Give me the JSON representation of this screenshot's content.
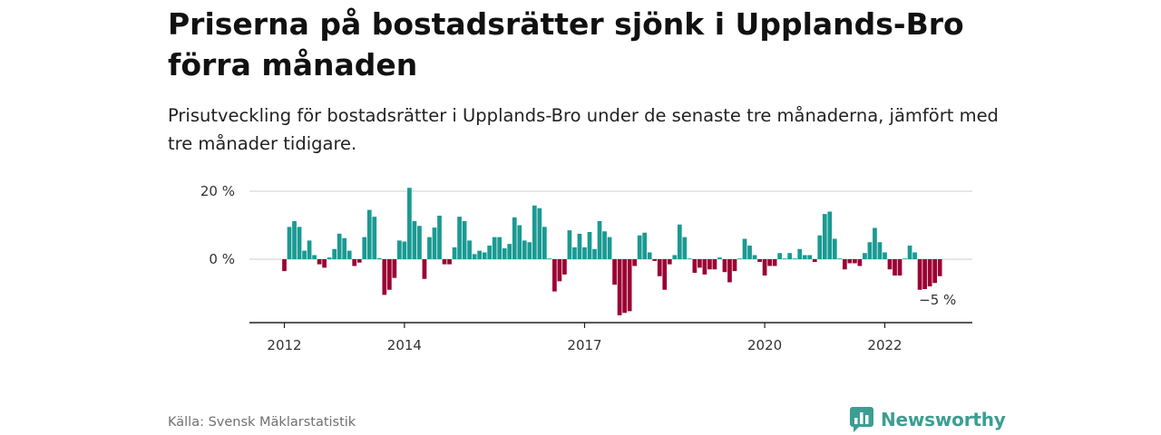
{
  "title": "Priserna på bostadsrätter sjönk i Upplands-Bro förra månaden",
  "subtitle": "Prisutveckling för bostadsrätter i Upplands-Bro under de senaste tre månaderna, jämfört med tre månader tidigare.",
  "source": "Källa: Svensk Mäklarstatistik",
  "brand": "Newsworthy",
  "chart_data": {
    "type": "bar",
    "ylim": [
      -17,
      22
    ],
    "y_ticks": [
      {
        "value": 20,
        "label": "20 %"
      },
      {
        "value": 0,
        "label": "0 %"
      }
    ],
    "x_ticks": [
      {
        "value": 2012,
        "label": "2012"
      },
      {
        "value": 2014,
        "label": "2014"
      },
      {
        "value": 2017,
        "label": "2017"
      },
      {
        "value": 2020,
        "label": "2020"
      },
      {
        "value": 2022,
        "label": "2022"
      }
    ],
    "start": 2012.0,
    "step": 0.08333,
    "values": [
      -3.5,
      9.5,
      11.2,
      9.5,
      2.5,
      5.5,
      1.2,
      -1.5,
      -2.5,
      0.5,
      3,
      7.5,
      6.2,
      2.5,
      -2,
      -1,
      6.5,
      14.5,
      12.5,
      0.3,
      -10.5,
      -9,
      -5.5,
      5.5,
      5.2,
      21,
      11.2,
      9.8,
      -5.8,
      6.5,
      9.3,
      12.8,
      -1.5,
      -1.5,
      3.5,
      12.5,
      11.2,
      5.5,
      1.5,
      2.5,
      2,
      4,
      6.5,
      6.5,
      3.2,
      4.5,
      12.3,
      10,
      5.5,
      5,
      15.8,
      15,
      9.5,
      0.2,
      -9.5,
      -6.5,
      -4.5,
      8.5,
      3.5,
      7.5,
      3.5,
      8,
      3,
      11.2,
      8.2,
      6.5,
      -7.5,
      -16.5,
      -15.8,
      -15.3,
      -2,
      7,
      7.8,
      2,
      -0.5,
      -5,
      -9,
      -1.5,
      1.2,
      10.2,
      6.5,
      0.2,
      -4,
      -2.5,
      -4.5,
      -3,
      -3,
      0.5,
      -3.8,
      -6.8,
      -3.5,
      0.2,
      6,
      4,
      1.2,
      -0.8,
      -4.8,
      -2,
      -2,
      1.8,
      0.2,
      1.8,
      0.2,
      3,
      1.2,
      1.2,
      -0.8,
      7,
      13.3,
      14,
      6,
      0.2,
      -3,
      -1.2,
      -1.2,
      -2,
      1.8,
      5,
      9.2,
      5,
      2,
      -3,
      -4.8,
      -4.8,
      0.2,
      4,
      2,
      -9,
      -8.8,
      -8,
      -7,
      -5
    ],
    "positive_color": "#1a9a93",
    "negative_color": "#9b0034",
    "last_label": "−5 %"
  }
}
